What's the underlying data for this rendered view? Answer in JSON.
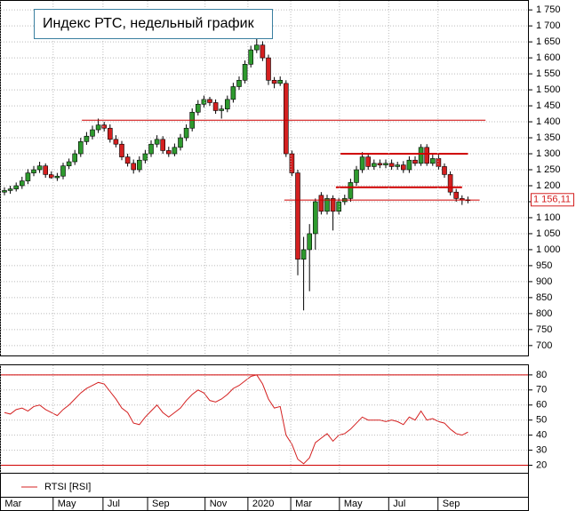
{
  "chart_data": [
    {
      "type": "candlestick",
      "title": "Индекс РТС, недельный график",
      "categories": [
        null,
        null,
        null,
        null,
        null,
        null,
        null,
        null,
        null,
        null,
        null,
        null,
        null,
        null,
        null,
        null,
        null,
        null,
        null,
        null,
        null,
        null,
        null,
        null,
        null,
        null,
        null,
        null,
        null,
        null,
        null,
        null,
        null,
        null,
        null,
        null,
        null,
        null,
        null,
        null,
        null,
        null,
        null,
        null,
        null,
        null,
        null,
        null,
        null,
        null,
        null,
        null,
        null,
        null,
        null,
        null,
        null,
        null,
        null,
        null,
        null,
        null,
        null,
        null,
        null,
        null,
        null,
        null,
        null,
        null,
        null,
        null,
        null,
        null,
        null,
        null,
        null,
        null,
        null,
        null
      ],
      "open": [
        1180,
        1185,
        1190,
        1200,
        1215,
        1240,
        1250,
        1262,
        1235,
        1225,
        1230,
        1262,
        1275,
        1300,
        1338,
        1355,
        1375,
        1390,
        1380,
        1345,
        1330,
        1290,
        1270,
        1250,
        1280,
        1300,
        1330,
        1345,
        1310,
        1300,
        1320,
        1350,
        1380,
        1430,
        1455,
        1470,
        1460,
        1435,
        1440,
        1470,
        1510,
        1530,
        1580,
        1625,
        1640,
        1600,
        1530,
        1520,
        1520,
        1300,
        1240,
        970,
        1000,
        1050,
        1170,
        1120,
        1160,
        1120,
        1150,
        1160,
        1210,
        1250,
        1290,
        1260,
        1270,
        1265,
        1270,
        1260,
        1265,
        1250,
        1280,
        1270,
        1320,
        1270,
        1285,
        1260,
        1235,
        1180,
        1160,
        1155
      ],
      "high": [
        1195,
        1200,
        1210,
        1228,
        1252,
        1262,
        1275,
        1270,
        1245,
        1240,
        1272,
        1285,
        1312,
        1350,
        1368,
        1388,
        1410,
        1400,
        1392,
        1358,
        1340,
        1300,
        1282,
        1292,
        1312,
        1342,
        1358,
        1355,
        1322,
        1332,
        1362,
        1392,
        1442,
        1468,
        1482,
        1478,
        1470,
        1452,
        1482,
        1522,
        1542,
        1592,
        1638,
        1660,
        1652,
        1610,
        1540,
        1542,
        1530,
        1310,
        1250,
        1040,
        1080,
        1160,
        1180,
        1172,
        1170,
        1162,
        1172,
        1222,
        1262,
        1305,
        1300,
        1282,
        1282,
        1282,
        1282,
        1275,
        1277,
        1292,
        1292,
        1330,
        1330,
        1297,
        1297,
        1270,
        1245,
        1190,
        1170,
        1166
      ],
      "low": [
        1170,
        1175,
        1182,
        1190,
        1205,
        1230,
        1240,
        1225,
        1222,
        1215,
        1220,
        1252,
        1265,
        1290,
        1328,
        1345,
        1365,
        1370,
        1335,
        1320,
        1280,
        1260,
        1238,
        1242,
        1270,
        1290,
        1320,
        1300,
        1290,
        1292,
        1310,
        1340,
        1370,
        1420,
        1445,
        1450,
        1425,
        1410,
        1430,
        1460,
        1500,
        1520,
        1570,
        1615,
        1590,
        1515,
        1505,
        1512,
        1290,
        1230,
        920,
        810,
        870,
        1000,
        1110,
        1110,
        1060,
        1110,
        1140,
        1150,
        1200,
        1240,
        1250,
        1250,
        1255,
        1255,
        1250,
        1250,
        1240,
        1240,
        1262,
        1262,
        1262,
        1262,
        1250,
        1225,
        1170,
        1150,
        1140,
        1145
      ],
      "close": [
        1185,
        1190,
        1200,
        1215,
        1240,
        1250,
        1262,
        1235,
        1225,
        1230,
        1262,
        1275,
        1300,
        1338,
        1355,
        1375,
        1390,
        1380,
        1345,
        1330,
        1290,
        1270,
        1250,
        1280,
        1300,
        1330,
        1345,
        1310,
        1300,
        1320,
        1350,
        1380,
        1430,
        1455,
        1470,
        1460,
        1435,
        1440,
        1470,
        1510,
        1530,
        1580,
        1625,
        1640,
        1600,
        1530,
        1520,
        1530,
        1300,
        1240,
        970,
        1000,
        1050,
        1150,
        1120,
        1160,
        1120,
        1150,
        1160,
        1210,
        1250,
        1290,
        1260,
        1270,
        1265,
        1270,
        1260,
        1265,
        1250,
        1280,
        1270,
        1320,
        1270,
        1285,
        1260,
        1235,
        1180,
        1160,
        1155,
        1156.11
      ],
      "up_color": "#2e9a2e",
      "down_color": "#d42020",
      "last_value": {
        "value": 1156.11,
        "label": "1 156,11"
      },
      "levels": [
        {
          "value": 1405,
          "from": 13.2,
          "to": 82
        },
        {
          "value": 1300,
          "from": 57.3,
          "to": 79
        },
        {
          "value": 1195,
          "from": 56.5,
          "to": 78
        },
        {
          "value": 1155,
          "from": 47.7,
          "to": 81
        }
      ],
      "ylim": [
        669,
        1781
      ],
      "yticks": [
        700,
        750,
        800,
        850,
        900,
        950,
        {
          "value": 1000,
          "label": "1 000"
        },
        {
          "value": 1050,
          "label": "1 050"
        },
        {
          "value": 1100,
          "label": "1 100"
        },
        {
          "value": 1150,
          "label": "1 150"
        },
        {
          "value": 1200,
          "label": "1 200"
        },
        {
          "value": 1250,
          "label": "1 250"
        },
        {
          "value": 1300,
          "label": "1 300"
        },
        {
          "value": 1350,
          "label": "1 350"
        },
        {
          "value": 1400,
          "label": "1 400"
        },
        {
          "value": 1450,
          "label": "1 450"
        },
        {
          "value": 1500,
          "label": "1 500"
        },
        {
          "value": 1550,
          "label": "1 550"
        },
        {
          "value": 1600,
          "label": "1 600"
        },
        {
          "value": 1650,
          "label": "1 650"
        },
        {
          "value": 1700,
          "label": "1 700"
        },
        {
          "value": 1750,
          "label": "1 750"
        }
      ],
      "grid": true
    },
    {
      "type": "line",
      "series": [
        {
          "name": "RTSI [RSI]",
          "color": "#d42020",
          "values": [
            55,
            54,
            57,
            58,
            56,
            59,
            60,
            57,
            55,
            53,
            57,
            60,
            64,
            68,
            71,
            73,
            75,
            74,
            69,
            64,
            58,
            55,
            48,
            47,
            52,
            56,
            60,
            55,
            52,
            55,
            58,
            63,
            67,
            70,
            68,
            63,
            62,
            64,
            67,
            71,
            73,
            76,
            79,
            80,
            74,
            64,
            58,
            59,
            40,
            34,
            24,
            21,
            25,
            35,
            38,
            41,
            36,
            40,
            41,
            44,
            48,
            52,
            50,
            50,
            50,
            49,
            50,
            49,
            47,
            52,
            50,
            56,
            50,
            51,
            49,
            48,
            44,
            41,
            40,
            42
          ]
        }
      ],
      "levels": [
        80,
        20
      ],
      "ylim": [
        15,
        87
      ],
      "yticks": [
        20,
        30,
        40,
        50,
        60,
        70,
        80
      ],
      "xticks": [
        {
          "value": -0.7,
          "label": "Mar"
        },
        {
          "value": 8.3,
          "label": "May"
        },
        {
          "value": 16.8,
          "label": "Jul"
        },
        {
          "value": 24.4,
          "label": "Sep"
        },
        {
          "value": 34.2,
          "label": "Nov"
        },
        {
          "value": 41.5,
          "label": "2020"
        },
        {
          "value": 48.8,
          "label": "Mar"
        },
        {
          "value": 57.1,
          "label": "May"
        },
        {
          "value": 65.5,
          "label": "Jul"
        },
        {
          "value": 73.9,
          "label": "Sep"
        }
      ],
      "grid": true
    }
  ]
}
